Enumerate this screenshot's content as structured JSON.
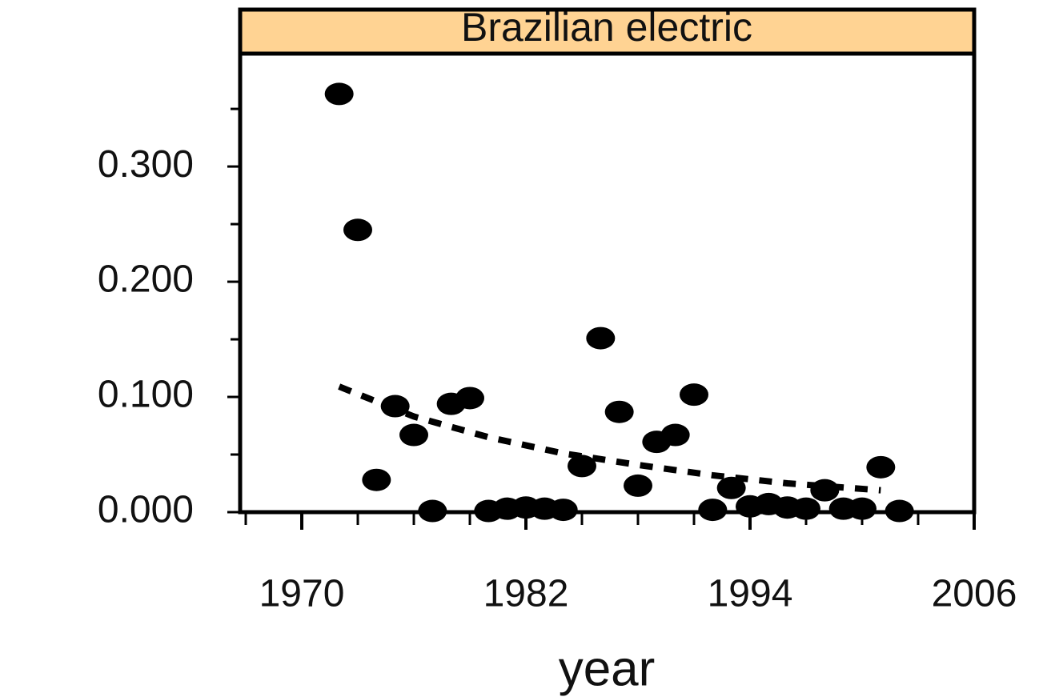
{
  "chart_data": {
    "type": "scatter",
    "strip_title": "Brazilian electric",
    "xlabel": "year",
    "xlim": [
      1966.7,
      2006
    ],
    "ylim": [
      0,
      0.398
    ],
    "xticks": [
      1970,
      1982,
      1994,
      2006
    ],
    "xminorticks": [
      1967,
      1973,
      1976,
      1979,
      1985,
      1988,
      1991,
      1997,
      2000,
      2003
    ],
    "yticks": [
      {
        "value": 0,
        "label": "0.000"
      },
      {
        "value": 0.1,
        "label": "0.100"
      },
      {
        "value": 0.2,
        "label": "0.200"
      },
      {
        "value": 0.3,
        "label": "0.300"
      }
    ],
    "yminorticks": [
      0.05,
      0.15,
      0.25,
      0.35
    ],
    "strip_color": "#ffd393",
    "series": [
      {
        "color": "#000000",
        "x": [
          1972,
          1973,
          1974,
          1975,
          1976,
          1977,
          1978,
          1979,
          1980,
          1981,
          1982,
          1983,
          1984,
          1985,
          1986,
          1987,
          1988,
          1989,
          1990,
          1991,
          1992,
          1993,
          1994,
          1995,
          1996,
          1997,
          1998,
          1999,
          2000,
          2001,
          2002
        ],
        "values": [
          0.363,
          0.245,
          0.028,
          0.092,
          0.067,
          0.001,
          0.094,
          0.099,
          0.001,
          0.003,
          0.004,
          0.003,
          0.002,
          0.04,
          0.151,
          0.087,
          0.023,
          0.061,
          0.067,
          0.102,
          0.002,
          0.021,
          0.005,
          0.007,
          0.004,
          0.003,
          0.019,
          0.003,
          0.003,
          0.039,
          0.001
        ]
      },
      {
        "color": "#000000",
        "style": "dashed",
        "x": [
          1972,
          1976,
          1980,
          1984,
          1988,
          1992,
          1996,
          2001
        ],
        "values": [
          0.109,
          0.083,
          0.065,
          0.051,
          0.041,
          0.032,
          0.025,
          0.019
        ]
      }
    ]
  }
}
